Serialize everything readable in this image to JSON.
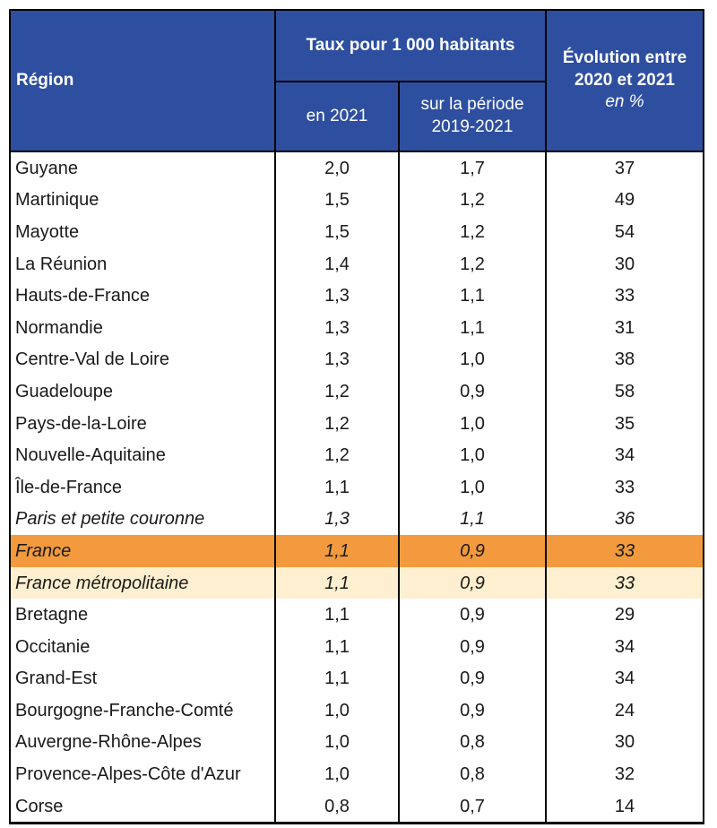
{
  "table": {
    "header": {
      "region": "Région",
      "rate_group": "Taux pour 1 000 habitants",
      "rate_2021": "en 2021",
      "rate_period_line1": "sur la période",
      "rate_period_line2": "2019-2021",
      "evolution_line1": "Évolution entre",
      "evolution_line2": "2020 et 2021",
      "evolution_unit": "en %"
    },
    "rows": [
      {
        "region": "Guyane",
        "rate_2021": "2,0",
        "rate_period": "1,7",
        "evolution": "37",
        "style": "normal"
      },
      {
        "region": "Martinique",
        "rate_2021": "1,5",
        "rate_period": "1,2",
        "evolution": "49",
        "style": "normal"
      },
      {
        "region": "Mayotte",
        "rate_2021": "1,5",
        "rate_period": "1,2",
        "evolution": "54",
        "style": "normal"
      },
      {
        "region": "La Réunion",
        "rate_2021": "1,4",
        "rate_period": "1,2",
        "evolution": "30",
        "style": "normal"
      },
      {
        "region": "Hauts-de-France",
        "rate_2021": "1,3",
        "rate_period": "1,1",
        "evolution": "33",
        "style": "normal"
      },
      {
        "region": "Normandie",
        "rate_2021": "1,3",
        "rate_period": "1,1",
        "evolution": "31",
        "style": "normal"
      },
      {
        "region": "Centre-Val de Loire",
        "rate_2021": "1,3",
        "rate_period": "1,0",
        "evolution": "38",
        "style": "normal"
      },
      {
        "region": "Guadeloupe",
        "rate_2021": "1,2",
        "rate_period": "0,9",
        "evolution": "58",
        "style": "normal"
      },
      {
        "region": "Pays-de-la-Loire",
        "rate_2021": "1,2",
        "rate_period": "1,0",
        "evolution": "35",
        "style": "normal"
      },
      {
        "region": "Nouvelle-Aquitaine",
        "rate_2021": "1,2",
        "rate_period": "1,0",
        "evolution": "34",
        "style": "normal"
      },
      {
        "region": "Île-de-France",
        "rate_2021": "1,1",
        "rate_period": "1,0",
        "evolution": "33",
        "style": "normal"
      },
      {
        "region": "Paris et petite couronne",
        "rate_2021": "1,3",
        "rate_period": "1,1",
        "evolution": "36",
        "style": "italic"
      },
      {
        "region": "France",
        "rate_2021": "1,1",
        "rate_period": "0,9",
        "evolution": "33",
        "style": "france"
      },
      {
        "region": "France métropolitaine",
        "rate_2021": "1,1",
        "rate_period": "0,9",
        "evolution": "33",
        "style": "metro"
      },
      {
        "region": "Bretagne",
        "rate_2021": "1,1",
        "rate_period": "0,9",
        "evolution": "29",
        "style": "normal"
      },
      {
        "region": "Occitanie",
        "rate_2021": "1,1",
        "rate_period": "0,9",
        "evolution": "34",
        "style": "normal"
      },
      {
        "region": "Grand-Est",
        "rate_2021": "1,1",
        "rate_period": "0,9",
        "evolution": "34",
        "style": "normal"
      },
      {
        "region": "Bourgogne-Franche-Comté",
        "rate_2021": "1,0",
        "rate_period": "0,9",
        "evolution": "24",
        "style": "normal"
      },
      {
        "region": "Auvergne-Rhône-Alpes",
        "rate_2021": "1,0",
        "rate_period": "0,8",
        "evolution": "30",
        "style": "normal"
      },
      {
        "region": "Provence-Alpes-Côte d'Azur",
        "rate_2021": "1,0",
        "rate_period": "0,8",
        "evolution": "32",
        "style": "normal"
      },
      {
        "region": "Corse",
        "rate_2021": "0,8",
        "rate_period": "0,7",
        "evolution": "14",
        "style": "normal"
      }
    ]
  },
  "colors": {
    "header_bg": "#2e4fa0",
    "header_text": "#ffffff",
    "france_row_bg": "#f29a3d",
    "metro_row_bg": "#fdefcf"
  }
}
